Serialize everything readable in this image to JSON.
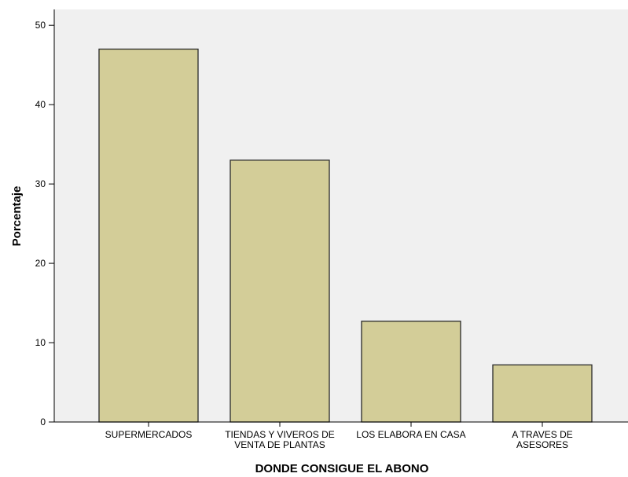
{
  "chart_data": {
    "type": "bar",
    "categories": [
      [
        "SUPERMERCADOS"
      ],
      [
        "TIENDAS Y VIVEROS DE",
        "VENTA DE PLANTAS"
      ],
      [
        "LOS ELABORA EN CASA"
      ],
      [
        "A TRAVES DE",
        "ASESORES"
      ]
    ],
    "values": [
      47,
      33,
      12.7,
      7.2
    ],
    "xlabel": "DONDE CONSIGUE EL ABONO",
    "ylabel": "Porcentaje",
    "ylim": [
      0,
      52
    ],
    "yticks": [
      0,
      10,
      20,
      30,
      40,
      50
    ],
    "grid": false,
    "colors": {
      "bar_fill": "#d3cd98",
      "bar_stroke": "#2a2a2a",
      "plot_background": "#f0f0f0",
      "axis": "#000000"
    }
  }
}
